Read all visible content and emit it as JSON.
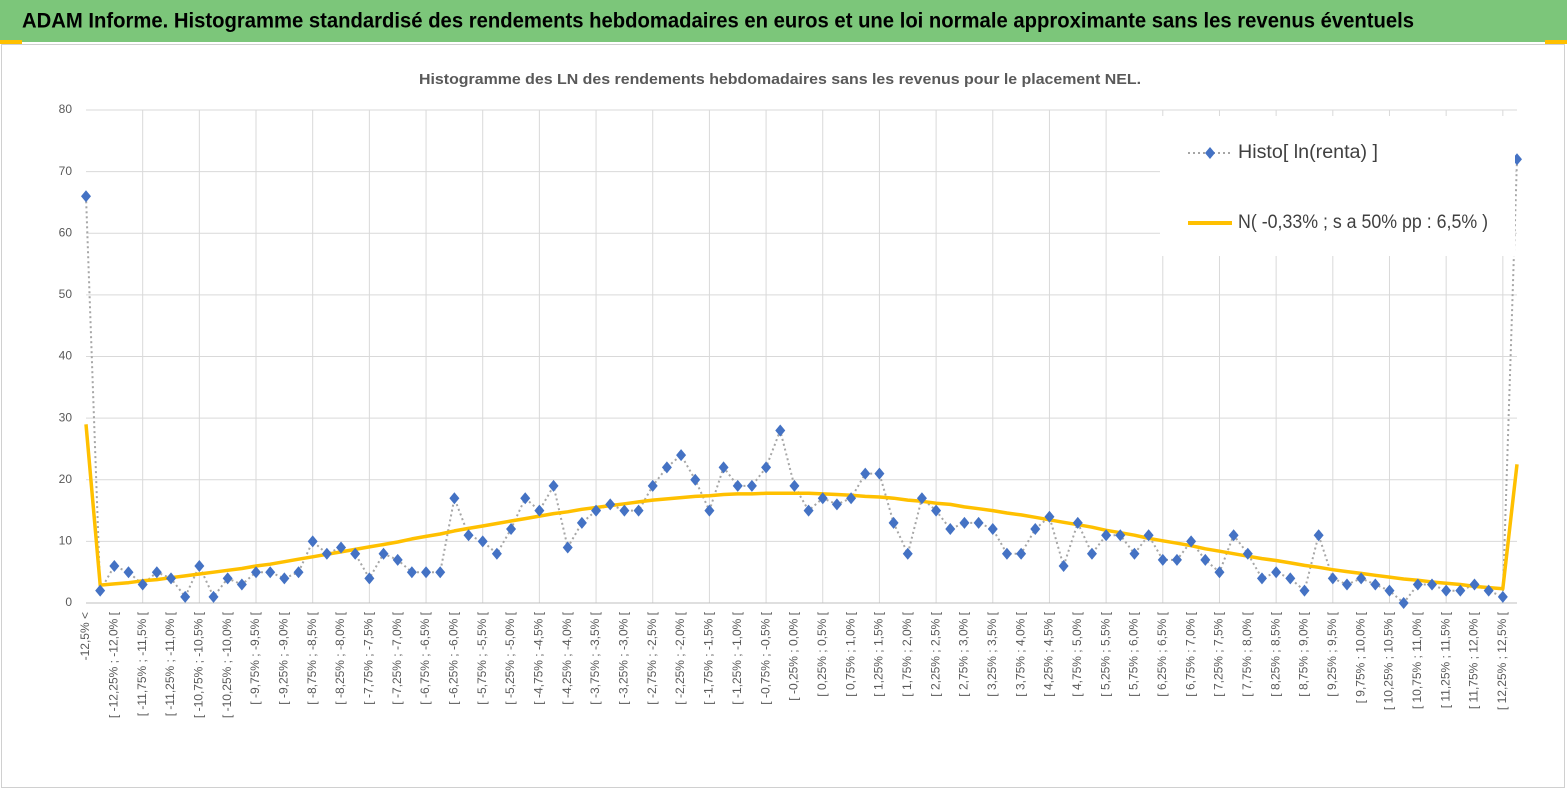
{
  "header": {
    "title": "ADAM Informe. Histogramme standardisé des rendements hebdomadaires en euros et une loi normale approximante sans les revenus éventuels"
  },
  "chart_data": {
    "type": "line",
    "title": "Histogramme des LN des rendements hebdomadaires sans les revenus pour le placement NEL.",
    "categories": [
      "-12,5% <",
      null,
      "[ -12,25% ; -12,0% [",
      null,
      "[ -11,75% ; -11,5% [",
      null,
      "[ -11,25% ; -11,0% [",
      null,
      "[ -10,75% ; -10,5% [",
      null,
      "[ -10,25% ; -10,0% [",
      null,
      "[ -9,75% ; -9,5% [",
      null,
      "[ -9,25% ; -9,0% [",
      null,
      "[ -8,75% ; -8,5% [",
      null,
      "[ -8,25% ; -8,0% [",
      null,
      "[ -7,75% ; -7,5% [",
      null,
      "[ -7,25% ; -7,0% [",
      null,
      "[ -6,75% ; -6,5% [",
      null,
      "[ -6,25% ; -6,0% [",
      null,
      "[ -5,75% ; -5,5% [",
      null,
      "[ -5,25% ; -5,0% [",
      null,
      "[ -4,75% ; -4,5% [",
      null,
      "[ -4,25% ; -4,0% [",
      null,
      "[ -3,75% ; -3,5% [",
      null,
      "[ -3,25% ; -3,0% [",
      null,
      "[ -2,75% ; -2,5% [",
      null,
      "[ -2,25% ; -2,0% [",
      null,
      "[ -1,75% ; -1,5% [",
      null,
      "[ -1,25% ; -1,0% [",
      null,
      "[ -0,75% ; -0,5% [",
      null,
      "[ -0,25% ; 0,0% [",
      null,
      "[ 0,25% ; 0,5% [",
      null,
      "[ 0,75% ; 1,0% [",
      null,
      "[ 1,25% ; 1,5% [",
      null,
      "[ 1,75% ; 2,0% [",
      null,
      "[ 2,25% ; 2,5% [",
      null,
      "[ 2,75% ; 3,0% [",
      null,
      "[ 3,25% ; 3,5% [",
      null,
      "[ 3,75% ; 4,0% [",
      null,
      "[ 4,25% ; 4,5% [",
      null,
      "[ 4,75% ; 5,0% [",
      null,
      "[ 5,25% ; 5,5% [",
      null,
      "[ 5,75% ; 6,0% [",
      null,
      "[ 6,25% ; 6,5% [",
      null,
      "[ 6,75% ; 7,0% [",
      null,
      "[ 7,25% ; 7,5% [",
      null,
      "[ 7,75% ; 8,0% [",
      null,
      "[ 8,25% ; 8,5% [",
      null,
      "[ 8,75% ; 9,0% [",
      null,
      "[ 9,25% ; 9,5% [",
      null,
      "[ 9,75% ; 10,0% [",
      null,
      "[ 10,25% ; 10,5% [",
      null,
      "[ 10,75% ; 11,0% [",
      null,
      "[ 11,25% ; 11,5% [",
      null,
      "[ 11,75% ; 12,0% [",
      null,
      "[ 12,25% ; 12,5% [",
      null
    ],
    "series": [
      {
        "name": "Histo[ ln(renta) ]",
        "color": "#4472c4",
        "line_color": "#a6a6a6",
        "values": [
          66,
          2,
          6,
          5,
          3,
          5,
          4,
          1,
          6,
          1,
          4,
          3,
          5,
          5,
          4,
          5,
          10,
          8,
          9,
          8,
          4,
          8,
          7,
          5,
          5,
          5,
          17,
          11,
          10,
          8,
          12,
          17,
          15,
          19,
          9,
          13,
          15,
          16,
          15,
          15,
          19,
          22,
          24,
          20,
          15,
          22,
          19,
          19,
          22,
          28,
          19,
          15,
          17,
          16,
          17,
          21,
          21,
          13,
          8,
          17,
          15,
          12,
          13,
          13,
          12,
          8,
          8,
          12,
          14,
          6,
          13,
          8,
          11,
          11,
          8,
          11,
          7,
          7,
          10,
          7,
          5,
          11,
          8,
          4,
          5,
          4,
          2,
          11,
          4,
          3,
          4,
          3,
          2,
          0,
          3,
          3,
          2,
          2,
          3,
          2,
          1,
          72
        ]
      },
      {
        "name": "N( -0,33% ; s a 50% pp : 6,5% )",
        "color": "#ffc000",
        "values": [
          29,
          2.9,
          3.1,
          3.3,
          3.6,
          3.8,
          4.1,
          4.4,
          4.7,
          5.0,
          5.3,
          5.6,
          6.0,
          6.3,
          6.7,
          7.1,
          7.5,
          7.9,
          8.3,
          8.7,
          9.1,
          9.5,
          9.9,
          10.4,
          10.8,
          11.2,
          11.7,
          12.1,
          12.5,
          12.9,
          13.3,
          13.7,
          14.1,
          14.5,
          14.8,
          15.2,
          15.5,
          15.8,
          16.1,
          16.4,
          16.7,
          16.9,
          17.1,
          17.3,
          17.4,
          17.6,
          17.7,
          17.7,
          17.8,
          17.8,
          17.8,
          17.8,
          17.7,
          17.6,
          17.5,
          17.3,
          17.2,
          17.0,
          16.7,
          16.5,
          16.2,
          16.0,
          15.6,
          15.3,
          15.0,
          14.6,
          14.3,
          13.9,
          13.5,
          13.1,
          12.7,
          12.3,
          11.8,
          11.4,
          11.0,
          10.5,
          10.1,
          9.7,
          9.3,
          8.8,
          8.4,
          8.0,
          7.6,
          7.2,
          6.9,
          6.5,
          6.1,
          5.8,
          5.4,
          5.1,
          4.8,
          4.5,
          4.2,
          3.9,
          3.7,
          3.4,
          3.2,
          3.0,
          2.7,
          2.5,
          2.3,
          22.5
        ]
      }
    ],
    "ylim": [
      0,
      80
    ],
    "yticks": [
      0,
      10,
      20,
      30,
      40,
      50,
      60,
      70,
      80
    ],
    "grid": true,
    "legend": "top-right"
  }
}
